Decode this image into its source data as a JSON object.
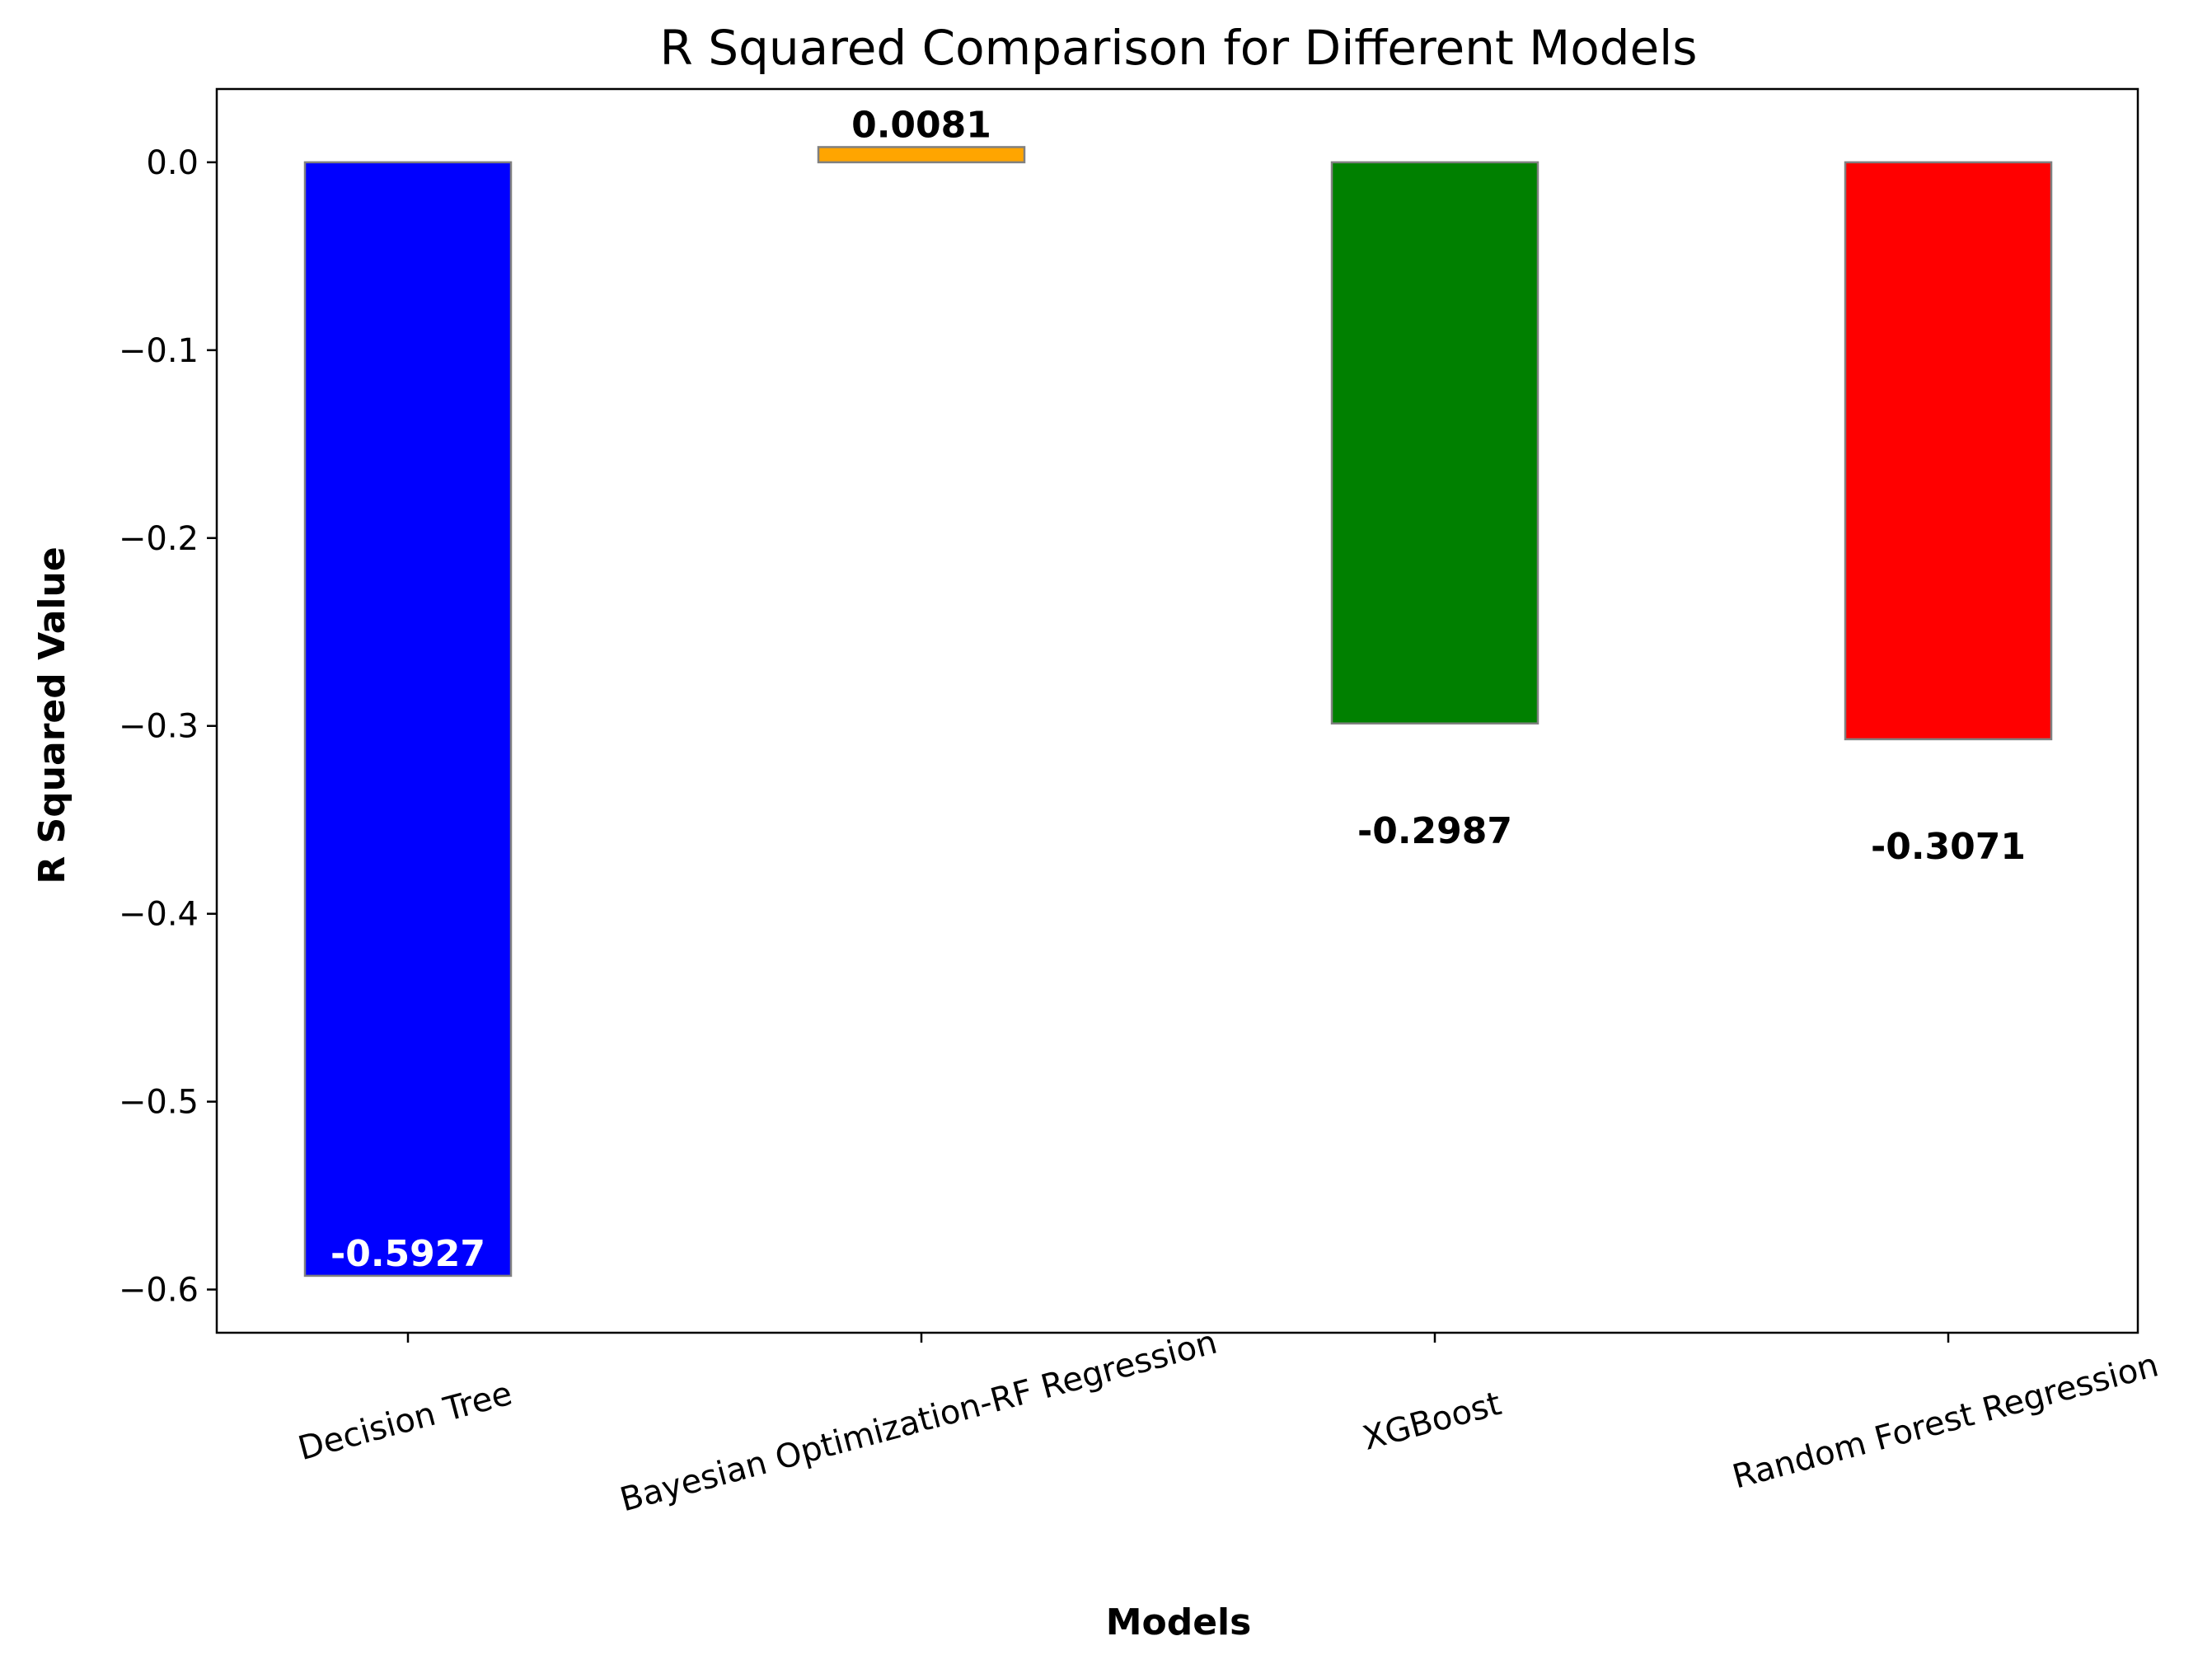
{
  "chart_data": {
    "type": "bar",
    "title": "R Squared Comparison for Different Models",
    "xlabel": "Models",
    "ylabel": "R Squared Value",
    "categories": [
      "Decision Tree",
      "Bayesian Optimization-RF Regression",
      "XGBoost",
      "Random Forest Regression"
    ],
    "values": [
      -0.5927,
      0.0081,
      -0.2987,
      -0.3071
    ],
    "value_labels": [
      "-0.5927",
      "0.0081",
      "-0.2987",
      "-0.3071"
    ],
    "colors": [
      "#0000ff",
      "#ffa500",
      "#008000",
      "#ff0000"
    ],
    "label_colors": [
      "#ffffff",
      "#000000",
      "#000000",
      "#000000"
    ],
    "ylim": [
      -0.623,
      0.039
    ],
    "yticks": [
      0.0,
      -0.1,
      -0.2,
      -0.3,
      -0.4,
      -0.5,
      -0.6
    ],
    "ytick_labels": [
      "0.0",
      "−0.1",
      "−0.2",
      "−0.3",
      "−0.4",
      "−0.5",
      "−0.6"
    ],
    "grid": false,
    "legend": "none"
  }
}
